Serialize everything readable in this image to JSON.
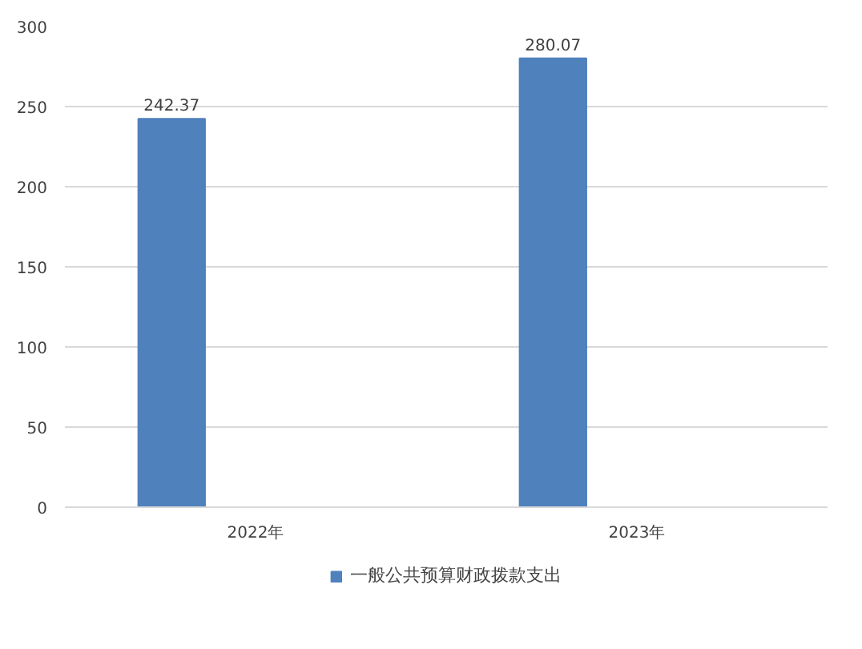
{
  "chart_data": {
    "type": "bar",
    "categories": [
      "2022年",
      "2023年"
    ],
    "series": [
      {
        "name": "一般公共预算财政拨款支出",
        "color": "#4f81bd",
        "values": [
          242.37,
          280.07
        ]
      }
    ],
    "ylim": [
      0,
      300
    ],
    "yticks": [
      0,
      50,
      100,
      150,
      200,
      250,
      300
    ],
    "grid": "y",
    "legend": "bottom",
    "data_labels": true
  }
}
